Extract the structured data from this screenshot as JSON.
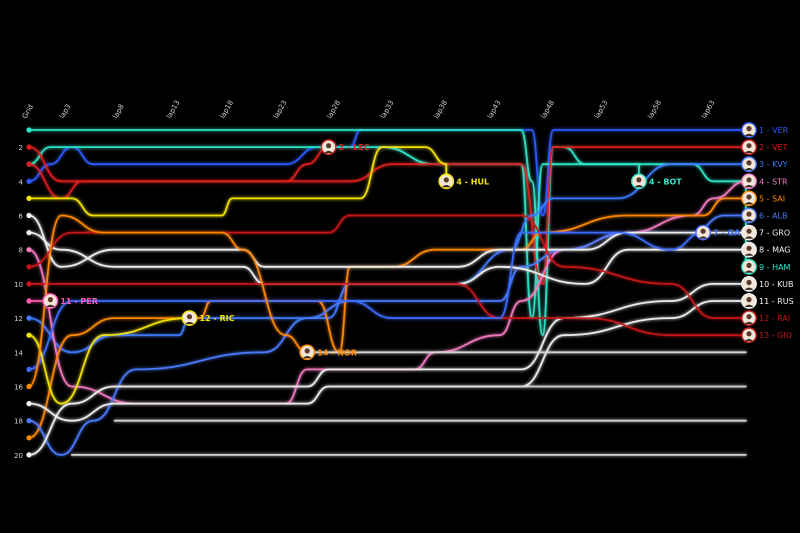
{
  "chart_data": {
    "type": "line",
    "xlabel": "",
    "ylabel": "",
    "grid_label": "Grid",
    "lap_ticks": [
      "lap3",
      "lap8",
      "lap13",
      "lap18",
      "lap23",
      "lap28",
      "lap33",
      "lap38",
      "lap43",
      "lap48",
      "lap53",
      "lap58",
      "lap63"
    ],
    "y_ticks": [
      2,
      4,
      6,
      8,
      10,
      12,
      14,
      16,
      18,
      20
    ],
    "ylim": [
      1,
      20
    ],
    "xlim": [
      0,
      67
    ],
    "grid": "off",
    "finishers": [
      {
        "pos": 1,
        "code": "VER",
        "color": "#2a5cff",
        "label": "1 - VER"
      },
      {
        "pos": 2,
        "code": "VET",
        "color": "#e01e1e",
        "label": "2 - VET"
      },
      {
        "pos": 3,
        "code": "KVY",
        "color": "#3d7bff",
        "label": "3 - KVY"
      },
      {
        "pos": 4,
        "code": "STR",
        "color": "#f57cc2",
        "label": "4 - STR"
      },
      {
        "pos": 5,
        "code": "SAI",
        "color": "#ff8a00",
        "label": "5 - SAI"
      },
      {
        "pos": 6,
        "code": "ALB",
        "color": "#4a7cff",
        "label": "6 - ALB"
      },
      {
        "pos": 7,
        "code": "GRO",
        "color": "#f2f2f2",
        "label": "7 - GRO"
      },
      {
        "pos": 8,
        "code": "MAG",
        "color": "#f2f2f2",
        "label": "8 - MAG"
      },
      {
        "pos": 9,
        "code": "HAM",
        "color": "#2ee6c8",
        "label": "9 - HAM"
      },
      {
        "pos": 10,
        "code": "KUB",
        "color": "#f2f2f2",
        "label": "10 - KUB"
      },
      {
        "pos": 11,
        "code": "RUS",
        "color": "#f2f2f2",
        "label": "11 - RUS"
      },
      {
        "pos": 12,
        "code": "RAI",
        "color": "#c81414",
        "label": "12 - RAI"
      },
      {
        "pos": 13,
        "code": "GIO",
        "color": "#c81414",
        "label": "13 - GIO"
      }
    ],
    "retirements": [
      {
        "code": "LEC",
        "label": "2 - LEC",
        "color": "#e01e1e",
        "lap": 28,
        "pos": 2
      },
      {
        "code": "HUL",
        "label": "4 - HUL",
        "color": "#f5e600",
        "lap": 39,
        "pos": 4
      },
      {
        "code": "BOT",
        "label": "4 - BOT",
        "color": "#2ee6c8",
        "lap": 57,
        "pos": 4
      },
      {
        "code": "GAS",
        "label": "7 - GAS",
        "color": "#3d6bff",
        "lap": 63,
        "pos": 7
      },
      {
        "code": "PER",
        "label": "11 - PER",
        "color": "#ff5ab4",
        "lap": 2,
        "pos": 11
      },
      {
        "code": "RIC",
        "label": "12 - RIC",
        "color": "#f5e600",
        "lap": 15,
        "pos": 12
      },
      {
        "code": "NOR",
        "label": "14 - NOR",
        "color": "#ff8a00",
        "lap": 26,
        "pos": 14
      }
    ],
    "lines": [
      {
        "code": "VER",
        "color": "#2a5cff",
        "pts": [
          [
            0,
            4
          ],
          [
            2,
            3
          ],
          [
            4,
            2
          ],
          [
            6,
            3
          ],
          [
            10,
            3
          ],
          [
            24,
            3
          ],
          [
            27,
            2
          ],
          [
            30,
            2
          ],
          [
            31,
            1
          ],
          [
            47,
            1
          ],
          [
            48,
            6
          ],
          [
            49,
            1
          ],
          [
            67,
            1
          ]
        ]
      },
      {
        "code": "HAM",
        "color": "#2ee6c8",
        "pts": [
          [
            0,
            1
          ],
          [
            29,
            1
          ],
          [
            30,
            1
          ],
          [
            31,
            1
          ],
          [
            46,
            1
          ],
          [
            47,
            4
          ],
          [
            48,
            13
          ],
          [
            49,
            2
          ],
          [
            50,
            2
          ],
          [
            52,
            3
          ],
          [
            62,
            3
          ],
          [
            64,
            4
          ],
          [
            67,
            4
          ],
          [
            67,
            9
          ]
        ]
      },
      {
        "code": "BOT",
        "color": "#2ee6c8",
        "pts": [
          [
            0,
            3
          ],
          [
            2,
            2
          ],
          [
            4,
            2
          ],
          [
            8,
            2
          ],
          [
            30,
            2
          ],
          [
            33,
            2
          ],
          [
            38,
            3
          ],
          [
            46,
            3
          ],
          [
            47,
            12
          ],
          [
            48,
            3
          ],
          [
            57,
            3
          ],
          [
            57,
            4
          ]
        ]
      },
      {
        "code": "VET",
        "color": "#e01e1e",
        "pts": [
          [
            0,
            2
          ],
          [
            3,
            4
          ],
          [
            6,
            4
          ],
          [
            30,
            4
          ],
          [
            34,
            3
          ],
          [
            46,
            3
          ],
          [
            48,
            10
          ],
          [
            49,
            2
          ],
          [
            67,
            2
          ]
        ]
      },
      {
        "code": "LEC",
        "color": "#e01e1e",
        "pts": [
          [
            0,
            3
          ],
          [
            3,
            5
          ],
          [
            5,
            4
          ],
          [
            24,
            4
          ],
          [
            26,
            3
          ],
          [
            28,
            2
          ]
        ]
      },
      {
        "code": "HUL",
        "color": "#f5e600",
        "pts": [
          [
            0,
            5
          ],
          [
            4,
            5
          ],
          [
            6,
            6
          ],
          [
            18,
            6
          ],
          [
            19,
            5
          ],
          [
            31,
            5
          ],
          [
            33,
            2
          ],
          [
            37,
            2
          ],
          [
            39,
            3
          ],
          [
            39,
            4
          ]
        ]
      },
      {
        "code": "KVY",
        "color": "#3d7bff",
        "pts": [
          [
            0,
            12
          ],
          [
            4,
            14
          ],
          [
            8,
            13
          ],
          [
            14,
            13
          ],
          [
            15,
            12
          ],
          [
            28,
            12
          ],
          [
            30,
            10
          ],
          [
            40,
            10
          ],
          [
            45,
            8
          ],
          [
            47,
            6
          ],
          [
            49,
            5
          ],
          [
            55,
            5
          ],
          [
            60,
            3
          ],
          [
            67,
            3
          ]
        ]
      },
      {
        "code": "STR",
        "color": "#f57cc2",
        "pts": [
          [
            0,
            8
          ],
          [
            4,
            16
          ],
          [
            10,
            17
          ],
          [
            24,
            17
          ],
          [
            26,
            15
          ],
          [
            36,
            15
          ],
          [
            38,
            14
          ],
          [
            44,
            13
          ],
          [
            46,
            11
          ],
          [
            50,
            8
          ],
          [
            56,
            7
          ],
          [
            62,
            6
          ],
          [
            64,
            5
          ],
          [
            67,
            4
          ]
        ]
      },
      {
        "code": "SAI",
        "color": "#ff8a00",
        "pts": [
          [
            0,
            19
          ],
          [
            4,
            13
          ],
          [
            8,
            12
          ],
          [
            16,
            12
          ],
          [
            17,
            11
          ],
          [
            27,
            11
          ],
          [
            29,
            14
          ],
          [
            30,
            9
          ],
          [
            34,
            9
          ],
          [
            38,
            8
          ],
          [
            46,
            8
          ],
          [
            48,
            7
          ],
          [
            56,
            6
          ],
          [
            63,
            6
          ],
          [
            65,
            5
          ],
          [
            67,
            5
          ]
        ]
      },
      {
        "code": "ALB",
        "color": "#4a7cff",
        "pts": [
          [
            0,
            18
          ],
          [
            3,
            20
          ],
          [
            6,
            18
          ],
          [
            10,
            15
          ],
          [
            22,
            14
          ],
          [
            26,
            12
          ],
          [
            30,
            11
          ],
          [
            44,
            11
          ],
          [
            46,
            9
          ],
          [
            50,
            8
          ],
          [
            56,
            7
          ],
          [
            62,
            7
          ],
          [
            65,
            6
          ],
          [
            67,
            6
          ]
        ]
      },
      {
        "code": "GRO",
        "color": "#f2f2f2",
        "pts": [
          [
            0,
            6
          ],
          [
            3,
            9
          ],
          [
            8,
            8
          ],
          [
            20,
            8
          ],
          [
            22,
            9
          ],
          [
            40,
            9
          ],
          [
            44,
            8
          ],
          [
            52,
            8
          ],
          [
            56,
            7
          ],
          [
            67,
            7
          ]
        ]
      },
      {
        "code": "MAG",
        "color": "#f2f2f2",
        "pts": [
          [
            0,
            7
          ],
          [
            3,
            8
          ],
          [
            8,
            9
          ],
          [
            20,
            9
          ],
          [
            22,
            10
          ],
          [
            40,
            10
          ],
          [
            44,
            9
          ],
          [
            52,
            10
          ],
          [
            56,
            8
          ],
          [
            67,
            8
          ]
        ]
      },
      {
        "code": "KUB",
        "color": "#f2f2f2",
        "pts": [
          [
            0,
            20
          ],
          [
            4,
            17
          ],
          [
            8,
            16
          ],
          [
            26,
            16
          ],
          [
            28,
            15
          ],
          [
            46,
            15
          ],
          [
            50,
            12
          ],
          [
            60,
            11
          ],
          [
            64,
            10
          ],
          [
            67,
            10
          ]
        ]
      },
      {
        "code": "RUS",
        "color": "#f2f2f2",
        "pts": [
          [
            0,
            17
          ],
          [
            4,
            18
          ],
          [
            8,
            17
          ],
          [
            26,
            17
          ],
          [
            28,
            16
          ],
          [
            46,
            16
          ],
          [
            50,
            13
          ],
          [
            60,
            12
          ],
          [
            64,
            11
          ],
          [
            67,
            11
          ]
        ]
      },
      {
        "code": "RAI",
        "color": "#c81414",
        "pts": [
          [
            0,
            9
          ],
          [
            4,
            7
          ],
          [
            8,
            7
          ],
          [
            28,
            7
          ],
          [
            30,
            6
          ],
          [
            46,
            6
          ],
          [
            50,
            9
          ],
          [
            60,
            10
          ],
          [
            64,
            12
          ],
          [
            67,
            12
          ]
        ]
      },
      {
        "code": "GIO",
        "color": "#c81414",
        "pts": [
          [
            0,
            10
          ],
          [
            4,
            10
          ],
          [
            8,
            10
          ],
          [
            40,
            10
          ],
          [
            44,
            12
          ],
          [
            52,
            12
          ],
          [
            60,
            13
          ],
          [
            67,
            13
          ]
        ]
      },
      {
        "code": "GAS",
        "color": "#3d6bff",
        "pts": [
          [
            0,
            15
          ],
          [
            4,
            11
          ],
          [
            8,
            11
          ],
          [
            30,
            11
          ],
          [
            34,
            12
          ],
          [
            44,
            12
          ],
          [
            46,
            7
          ],
          [
            55,
            7
          ],
          [
            60,
            8
          ],
          [
            63,
            7
          ]
        ]
      },
      {
        "code": "PER",
        "color": "#ff5ab4",
        "pts": [
          [
            0,
            11
          ],
          [
            2,
            11
          ]
        ]
      },
      {
        "code": "RIC",
        "color": "#f5e600",
        "pts": [
          [
            0,
            13
          ],
          [
            3,
            17
          ],
          [
            7,
            13
          ],
          [
            15,
            12
          ]
        ]
      },
      {
        "code": "NOR",
        "color": "#ff8a00",
        "pts": [
          [
            0,
            16
          ],
          [
            3,
            6
          ],
          [
            7,
            7
          ],
          [
            18,
            7
          ],
          [
            20,
            8
          ],
          [
            24,
            13
          ],
          [
            26,
            14
          ]
        ]
      },
      {
        "code": "LAP-GREY-14",
        "color": "#d8d8d8",
        "pts": [
          [
            26,
            14
          ],
          [
            67,
            14
          ]
        ]
      },
      {
        "code": "LAP-GREY-16",
        "color": "#d8d8d8",
        "pts": [
          [
            46,
            16
          ],
          [
            67,
            16
          ]
        ]
      },
      {
        "code": "LAP-GREY-18",
        "color": "#d8d8d8",
        "pts": [
          [
            8,
            18
          ],
          [
            67,
            18
          ]
        ]
      },
      {
        "code": "LAP-GREY-20",
        "color": "#d8d8d8",
        "pts": [
          [
            4,
            20
          ],
          [
            67,
            20
          ]
        ]
      }
    ]
  }
}
